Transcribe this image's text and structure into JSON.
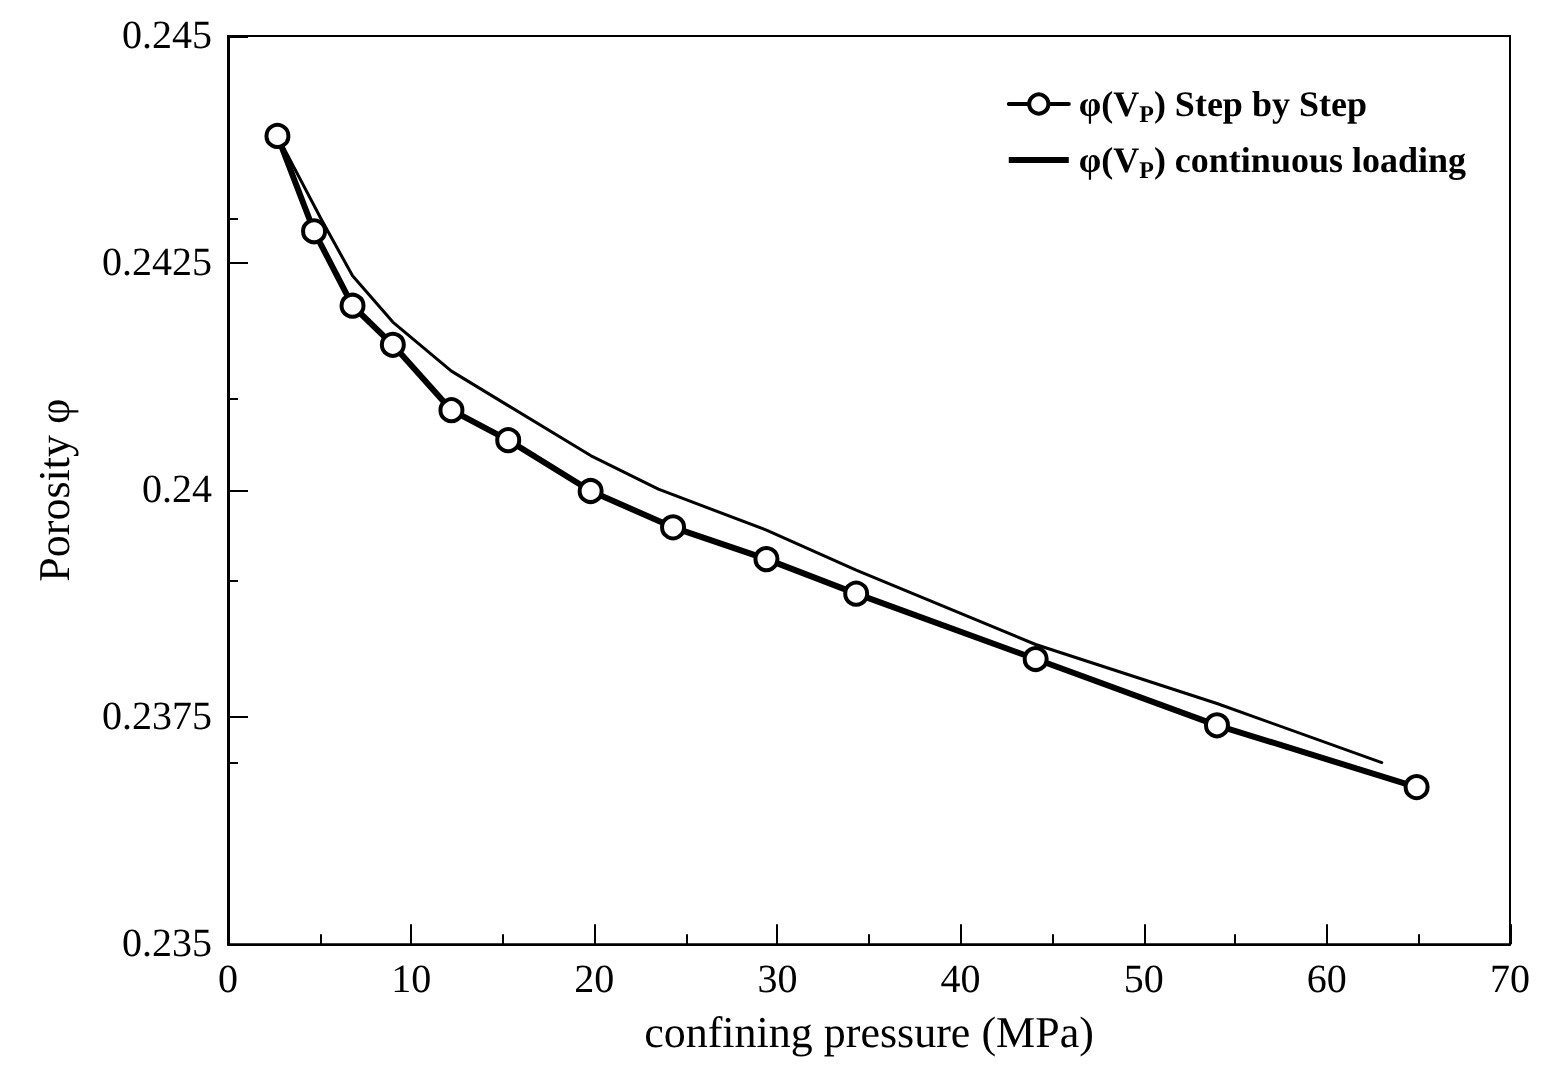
{
  "chart_data": {
    "type": "line",
    "xlabel": "confining pressure (MPa)",
    "ylabel": "Porosity φ",
    "xlim": [
      0,
      70
    ],
    "xticks": [
      0,
      10,
      20,
      30,
      40,
      50,
      60,
      70
    ],
    "ylim": [
      0.235,
      0.245
    ],
    "yticks": [
      0.235,
      0.2375,
      0.24,
      0.2425,
      0.245
    ],
    "grid": false,
    "legend": "top right",
    "series": [
      {
        "name": "φ(V$_{P}$) Step by Step",
        "color": "#000000",
        "marker": "circle",
        "line_style": "solid",
        "x": [
          2.7,
          4.7,
          6.8,
          9.0,
          12.2,
          15.3,
          19.8,
          24.3,
          29.4,
          34.3,
          44.1,
          54.0,
          64.9
        ],
        "values": [
          0.2439,
          0.24285,
          0.24203,
          0.2416,
          0.24088,
          0.24055,
          0.23999,
          0.23959,
          0.23924,
          0.23886,
          0.23814,
          0.23741,
          0.23673
        ]
      },
      {
        "name": "φ(V$_{P}$) continuous loading",
        "color": "#000000",
        "marker": "none",
        "line_style": "solid",
        "x": [
          2.7,
          5.1,
          6.8,
          9.0,
          12.2,
          15.3,
          19.8,
          23.5,
          29.4,
          34.3,
          44.1,
          54.0,
          63.0
        ],
        "values": [
          0.2439,
          0.24298,
          0.24236,
          0.24185,
          0.24131,
          0.24093,
          0.24038,
          0.24001,
          0.23956,
          0.23912,
          0.2383,
          0.23765,
          0.237
        ]
      }
    ]
  }
}
